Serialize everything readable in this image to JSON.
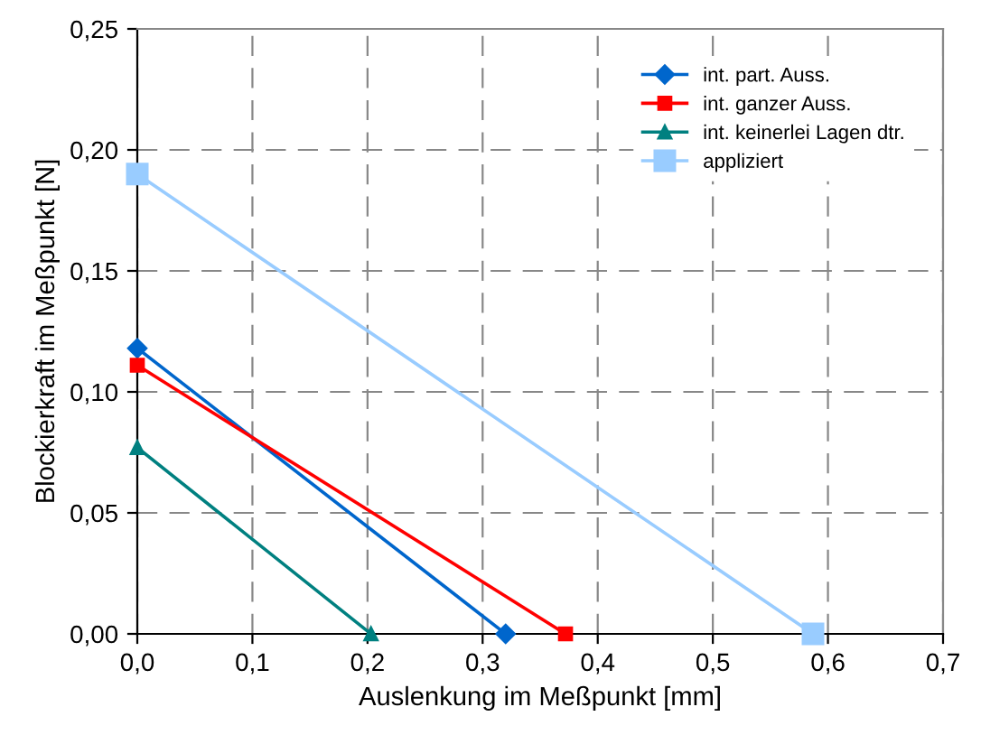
{
  "chart_data": {
    "type": "line",
    "xlabel": "Auslenkung im Meßpunkt [mm]",
    "ylabel": "Blockierkraft im Meßpunkt [N]",
    "xlim": [
      0,
      0.7
    ],
    "ylim": [
      0,
      0.25
    ],
    "xticks": [
      {
        "value": 0,
        "label": "0,0"
      },
      {
        "value": 0.1,
        "label": "0,1"
      },
      {
        "value": 0.2,
        "label": "0,2"
      },
      {
        "value": 0.3,
        "label": "0,3"
      },
      {
        "value": 0.4,
        "label": "0,4"
      },
      {
        "value": 0.5,
        "label": "0,5"
      },
      {
        "value": 0.6,
        "label": "0,6"
      },
      {
        "value": 0.7,
        "label": "0,7"
      }
    ],
    "yticks": [
      {
        "value": 0,
        "label": "0,00"
      },
      {
        "value": 0.05,
        "label": "0,05"
      },
      {
        "value": 0.1,
        "label": "0,10"
      },
      {
        "value": 0.15,
        "label": "0,15"
      },
      {
        "value": 0.2,
        "label": "0,20"
      },
      {
        "value": 0.25,
        "label": "0,25"
      }
    ],
    "grid": true,
    "legend": "top right",
    "line_style": "solid",
    "series": [
      {
        "name": "int. part. Auss.",
        "color": "#0066cc",
        "marker": "diamond",
        "x": [
          0,
          0.32
        ],
        "values": [
          0.118,
          0
        ]
      },
      {
        "name": "int. ganzer Auss.",
        "color": "#ff0000",
        "marker": "square",
        "x": [
          0,
          0.372
        ],
        "values": [
          0.111,
          0
        ]
      },
      {
        "name": "int. keinerlei Lagen dtr.",
        "color": "#008080",
        "marker": "triangle",
        "x": [
          0,
          0.203
        ],
        "values": [
          0.077,
          0
        ]
      },
      {
        "name": "appliziert",
        "color": "#99ccff",
        "marker": "square",
        "x": [
          0,
          0.587
        ],
        "values": [
          0.19,
          0
        ]
      }
    ]
  }
}
